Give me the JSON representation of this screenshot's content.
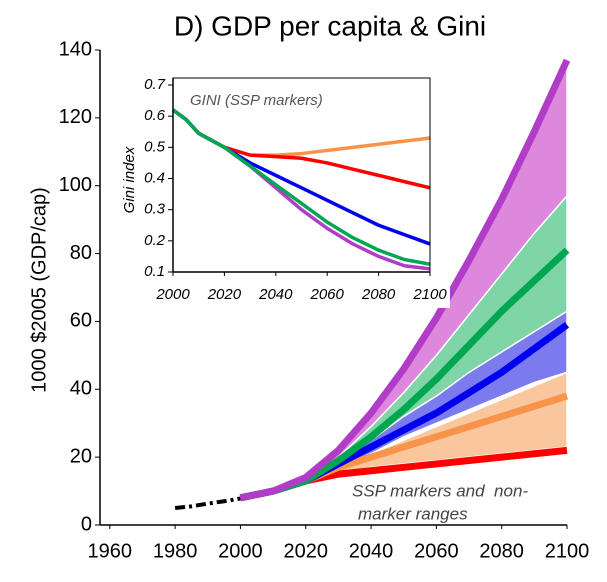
{
  "chart_data": [
    {
      "type": "line",
      "title": "D) GDP per capita & Gini",
      "ylabel": "1000 $2005 (GDP/cap)",
      "xlim": [
        1957,
        2100
      ],
      "xticks": [
        1960,
        1980,
        2000,
        2020,
        2040,
        2060,
        2080,
        2100
      ],
      "ylim": [
        0,
        140
      ],
      "yticks": [
        0,
        20,
        40,
        60,
        80,
        100,
        120,
        140
      ],
      "annotation": [
        "SSP markers and  non-",
        "marker ranges"
      ],
      "ranges": [
        {
          "color": "#dd88dd",
          "x": [
            2020,
            2030,
            2040,
            2050,
            2060,
            2070,
            2080,
            2090,
            2100
          ],
          "low": [
            13,
            20,
            29,
            39,
            50,
            62,
            74,
            86,
            97
          ],
          "high": [
            13,
            22,
            33,
            46,
            61,
            78,
            96,
            116,
            137
          ]
        },
        {
          "color": "#7fd4a8",
          "x": [
            2020,
            2030,
            2040,
            2050,
            2060,
            2070,
            2080,
            2090,
            2100
          ],
          "low": [
            13,
            18,
            24,
            30,
            37,
            44,
            51,
            57,
            62
          ],
          "high": [
            13,
            20,
            29,
            39,
            50,
            62,
            74,
            86,
            97
          ]
        },
        {
          "color": "#7b7bee",
          "x": [
            2020,
            2030,
            2040,
            2050,
            2060,
            2070,
            2080,
            2090,
            2100
          ],
          "low": [
            13,
            17,
            21,
            26,
            30,
            34,
            38,
            42,
            45
          ],
          "high": [
            13,
            19,
            25,
            32,
            38,
            45,
            51,
            57,
            63
          ]
        },
        {
          "color": "#f9c69e",
          "x": [
            2020,
            2030,
            2040,
            2050,
            2060,
            2070,
            2080,
            2090,
            2100
          ],
          "low": [
            13,
            15,
            17,
            18,
            19,
            20,
            21,
            22,
            23
          ],
          "high": [
            13,
            17,
            21,
            25,
            29,
            33,
            37,
            41,
            45
          ]
        }
      ],
      "series": [
        {
          "color": "#000000",
          "style": "dash-dot",
          "x": [
            1980,
            1985,
            1990,
            1995,
            2000
          ],
          "values": [
            5,
            5.5,
            6.3,
            7,
            7.8
          ]
        },
        {
          "color": "#ff0000",
          "x": [
            2000,
            2010,
            2020,
            2030,
            2040,
            2050,
            2060,
            2070,
            2080,
            2090,
            2100
          ],
          "values": [
            8,
            10,
            13,
            15,
            16,
            17,
            18,
            19,
            20,
            21,
            22
          ]
        },
        {
          "color": "#f7944a",
          "x": [
            2000,
            2010,
            2020,
            2030,
            2040,
            2050,
            2060,
            2070,
            2080,
            2090,
            2100
          ],
          "values": [
            8,
            10,
            13,
            17,
            20,
            23,
            26,
            29,
            32,
            35,
            38
          ]
        },
        {
          "color": "#0000ee",
          "x": [
            2000,
            2010,
            2020,
            2030,
            2040,
            2050,
            2060,
            2070,
            2080,
            2090,
            2100
          ],
          "values": [
            8,
            10,
            13,
            18,
            23,
            28,
            33,
            39,
            45,
            52,
            59
          ]
        },
        {
          "color": "#00a650",
          "x": [
            2000,
            2010,
            2020,
            2030,
            2040,
            2050,
            2060,
            2070,
            2080,
            2090,
            2100
          ],
          "values": [
            8,
            10,
            13,
            19,
            26,
            34,
            43,
            53,
            63,
            72,
            81
          ]
        },
        {
          "color": "#b03cc8",
          "x": [
            2000,
            2010,
            2020,
            2030,
            2040,
            2050,
            2060,
            2070,
            2080,
            2090,
            2100
          ],
          "values": [
            8,
            10,
            14,
            22,
            33,
            46,
            61,
            78,
            96,
            116,
            137
          ]
        }
      ]
    },
    {
      "type": "line",
      "title": "GINI (SSP markers)",
      "ylabel": "Gini index",
      "xlim": [
        2000,
        2100
      ],
      "xticks": [
        2000,
        2020,
        2040,
        2060,
        2080,
        2100
      ],
      "ylim": [
        0.1,
        0.7
      ],
      "yticks": [
        0.1,
        0.2,
        0.3,
        0.4,
        0.5,
        0.6,
        0.7
      ],
      "series": [
        {
          "color": "#f7944a",
          "x": [
            2000,
            2005,
            2010,
            2020,
            2030,
            2040,
            2050,
            2060,
            2070,
            2080,
            2090,
            2100
          ],
          "values": [
            0.62,
            0.59,
            0.545,
            0.5,
            0.475,
            0.475,
            0.48,
            0.49,
            0.5,
            0.51,
            0.52,
            0.53
          ]
        },
        {
          "color": "#ff0000",
          "x": [
            2000,
            2005,
            2010,
            2020,
            2030,
            2040,
            2050,
            2060,
            2070,
            2080,
            2090,
            2100
          ],
          "values": [
            0.62,
            0.59,
            0.545,
            0.5,
            0.475,
            0.47,
            0.465,
            0.45,
            0.43,
            0.41,
            0.39,
            0.37
          ]
        },
        {
          "color": "#0000ee",
          "x": [
            2000,
            2005,
            2010,
            2020,
            2030,
            2040,
            2050,
            2060,
            2070,
            2080,
            2090,
            2100
          ],
          "values": [
            0.62,
            0.59,
            0.545,
            0.5,
            0.45,
            0.41,
            0.37,
            0.33,
            0.29,
            0.25,
            0.22,
            0.19
          ]
        },
        {
          "color": "#b03cc8",
          "x": [
            2000,
            2005,
            2010,
            2020,
            2030,
            2040,
            2050,
            2060,
            2070,
            2080,
            2090,
            2100
          ],
          "values": [
            0.62,
            0.59,
            0.545,
            0.5,
            0.44,
            0.37,
            0.3,
            0.24,
            0.19,
            0.15,
            0.12,
            0.11
          ]
        },
        {
          "color": "#00a650",
          "x": [
            2000,
            2005,
            2010,
            2020,
            2030,
            2040,
            2050,
            2060,
            2070,
            2080,
            2090,
            2100
          ],
          "values": [
            0.62,
            0.59,
            0.545,
            0.5,
            0.44,
            0.38,
            0.32,
            0.26,
            0.21,
            0.17,
            0.14,
            0.125
          ]
        }
      ]
    }
  ]
}
